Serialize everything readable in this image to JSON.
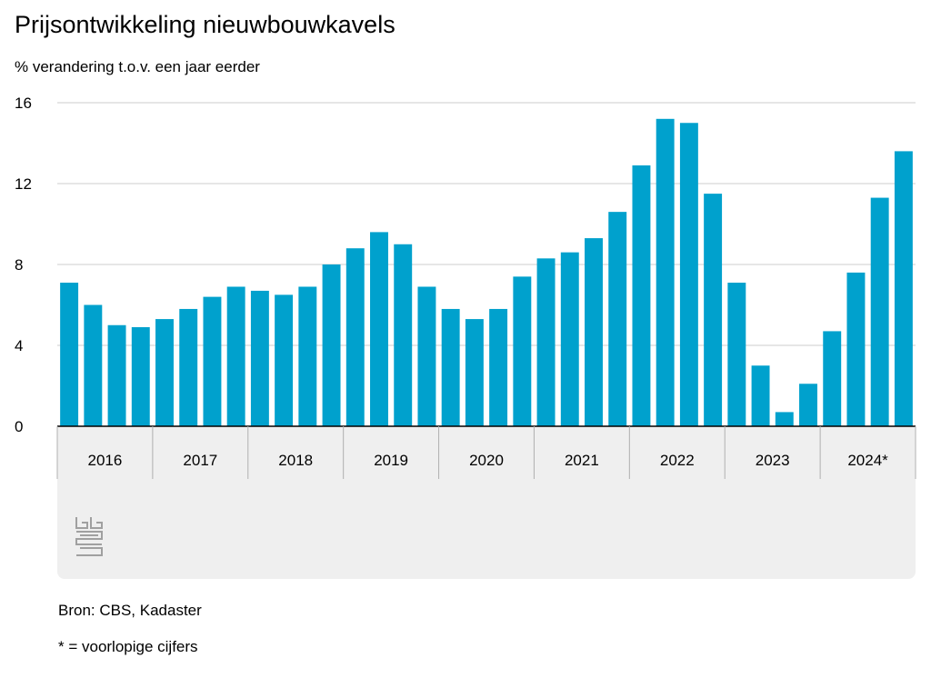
{
  "title": "Prijsontwikkeling nieuwbouwkavels",
  "subtitle": "% verandering t.o.v. een jaar eerder",
  "source": "Bron: CBS, Kadaster",
  "footnote": "* = voorlopige cijfers",
  "colors": {
    "bar": "#00a1cd",
    "grid": "#cccccc",
    "band": "#efefef",
    "axis": "#555555"
  },
  "logo": "cbs-logo",
  "chart_data": {
    "type": "bar",
    "ylim": [
      0,
      16
    ],
    "yticks": [
      0,
      4,
      8,
      12,
      16
    ],
    "grid": true,
    "year_labels": [
      "2016",
      "2017",
      "2018",
      "2019",
      "2020",
      "2021",
      "2022",
      "2023",
      "2024*"
    ],
    "categories": [
      "2016 Q1",
      "2016 Q2",
      "2016 Q3",
      "2016 Q4",
      "2017 Q1",
      "2017 Q2",
      "2017 Q3",
      "2017 Q4",
      "2018 Q1",
      "2018 Q2",
      "2018 Q3",
      "2018 Q4",
      "2019 Q1",
      "2019 Q2",
      "2019 Q3",
      "2019 Q4",
      "2020 Q1",
      "2020 Q2",
      "2020 Q3",
      "2020 Q4",
      "2021 Q1",
      "2021 Q2",
      "2021 Q3",
      "2021 Q4",
      "2022 Q1",
      "2022 Q2",
      "2022 Q3",
      "2022 Q4",
      "2023 Q1",
      "2023 Q2",
      "2023 Q3",
      "2023 Q4",
      "2024 Q1",
      "2024 Q2",
      "2024 Q3",
      "2024 Q4"
    ],
    "values": [
      7.1,
      6.0,
      5.0,
      4.9,
      5.3,
      5.8,
      6.4,
      6.9,
      6.7,
      6.5,
      6.9,
      8.0,
      8.8,
      9.6,
      9.0,
      6.9,
      5.8,
      5.3,
      5.8,
      7.4,
      8.3,
      8.6,
      9.3,
      10.6,
      12.9,
      15.2,
      15.0,
      11.5,
      7.1,
      3.0,
      0.7,
      2.1,
      4.7,
      7.6,
      11.3,
      13.6
    ]
  }
}
